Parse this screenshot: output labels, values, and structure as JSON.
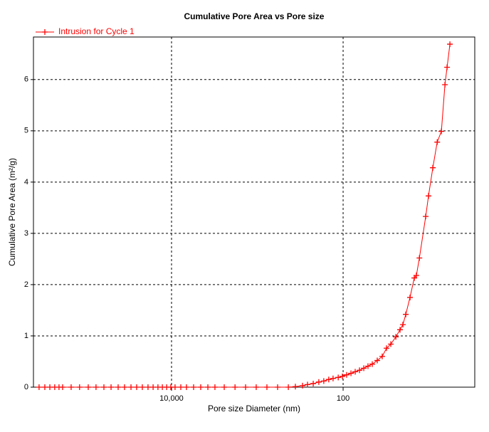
{
  "chart_data": {
    "type": "line",
    "title": "Cumulative Pore Area vs Pore size",
    "xlabel": "Pore size Diameter (nm)",
    "ylabel": "Cumulative Pore Area (m²/g)",
    "log_x": true,
    "grid": true,
    "legend": "upper left",
    "xlim": [
      407000,
      2.92
    ],
    "xticks": [
      {
        "value": 10000,
        "label": "10,000"
      },
      100
    ],
    "ylim": [
      0,
      6.83
    ],
    "yticks": [
      0,
      1,
      2,
      3,
      4,
      5,
      6
    ],
    "x": [
      350000,
      300000,
      262000,
      230000,
      205000,
      186000,
      148000,
      118000,
      93500,
      75900,
      61400,
      50700,
      41900,
      35300,
      29700,
      25500,
      21900,
      18800,
      16400,
      14400,
      12800,
      11400,
      10200,
      9100,
      7800,
      6700,
      5530,
      4570,
      3770,
      3120,
      2430,
      1820,
      1370,
      1030,
      773,
      580,
      435,
      360,
      297,
      260,
      223,
      192,
      168,
      147,
      131,
      114,
      102,
      91,
      81,
      72.3,
      64.4,
      57.4,
      51.3,
      45.7,
      40,
      35,
      31.2,
      27.8,
      24.3,
      21.7,
      20.1,
      18.6,
      16.6,
      14.8,
      14.0,
      12.9,
      10.9,
      10.1,
      9.0,
      8.0,
      7.16,
      6.5,
      6.14,
      5.69
    ],
    "series": [
      {
        "name": "Intrusion for Cycle 1",
        "color": "#ff0000",
        "values": [
          0,
          0,
          0,
          0,
          0,
          0,
          0,
          0,
          0,
          0,
          0,
          0,
          0,
          0,
          0,
          0,
          0,
          0,
          0,
          0,
          0,
          0,
          0,
          0,
          0,
          0,
          0,
          0,
          0,
          0,
          0,
          0,
          0,
          0,
          0,
          0,
          0,
          0.01,
          0.03,
          0.05,
          0.07,
          0.1,
          0.12,
          0.15,
          0.17,
          0.19,
          0.21,
          0.24,
          0.27,
          0.3,
          0.33,
          0.37,
          0.41,
          0.45,
          0.52,
          0.6,
          0.76,
          0.84,
          0.98,
          1.12,
          1.22,
          1.42,
          1.75,
          2.13,
          2.18,
          2.52,
          3.33,
          3.73,
          4.28,
          4.78,
          4.99,
          5.9,
          6.24,
          6.69
        ]
      }
    ]
  }
}
